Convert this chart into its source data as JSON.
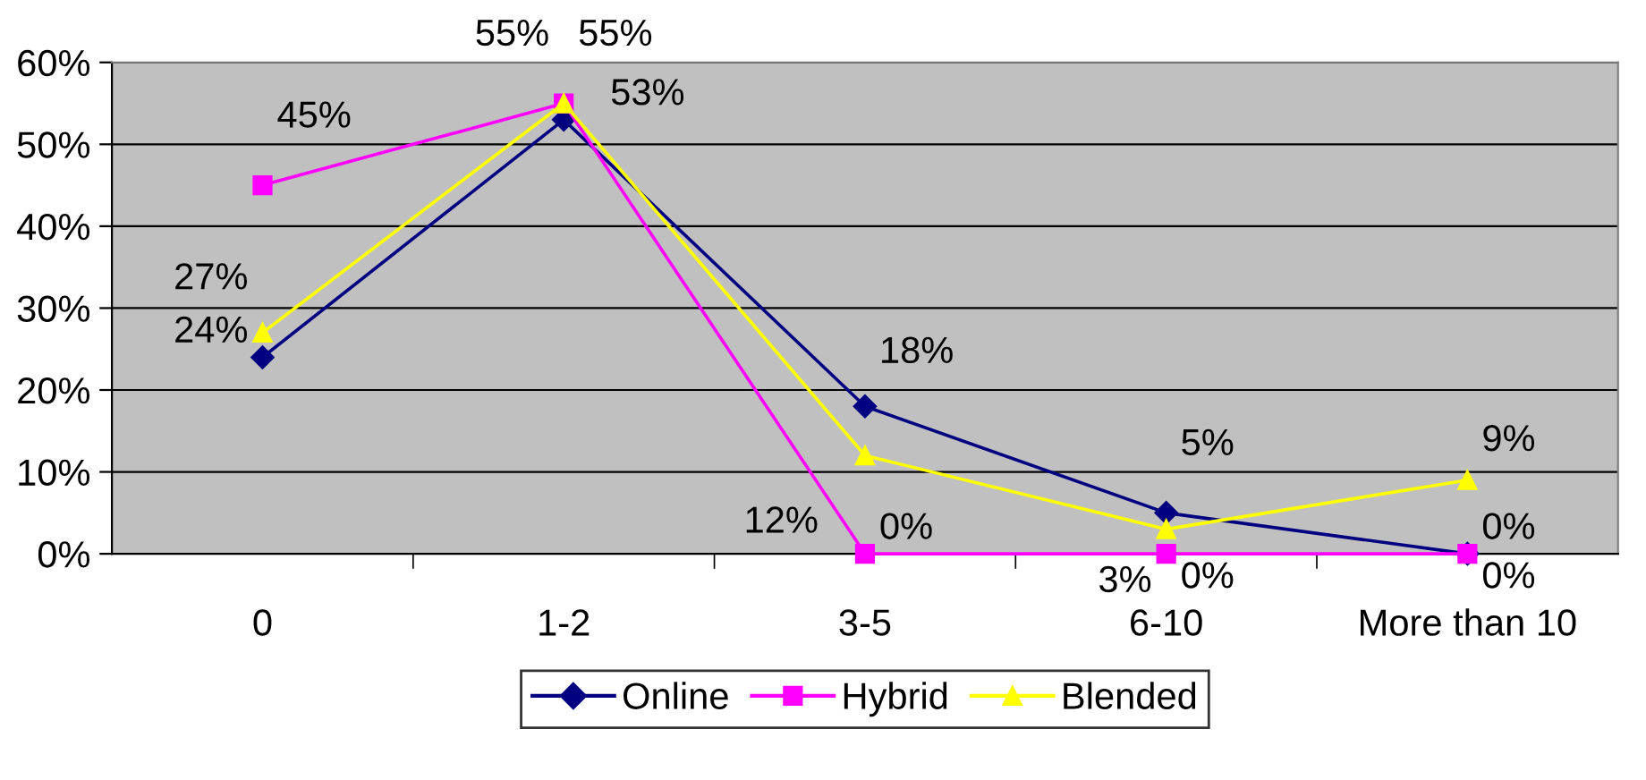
{
  "chart_data": {
    "type": "line",
    "categories": [
      "0",
      "1-2",
      "3-5",
      "6-10",
      "More than 10"
    ],
    "series": [
      {
        "name": "Online",
        "color": "#000080",
        "marker": "diamond",
        "values": [
          24,
          53,
          18,
          5,
          0
        ],
        "value_labels": [
          "24%",
          "53%",
          "18%",
          "5%",
          "0%"
        ]
      },
      {
        "name": "Hybrid",
        "color": "#ff00ff",
        "marker": "square",
        "values": [
          45,
          55,
          0,
          0,
          0
        ],
        "value_labels": [
          "45%",
          "55%",
          "0%",
          "0%",
          "0%"
        ]
      },
      {
        "name": "Blended",
        "color": "#ffff00",
        "marker": "triangle",
        "values": [
          27,
          55,
          12,
          3,
          9
        ],
        "value_labels": [
          "27%",
          "55%",
          "12%",
          "3%",
          "9%"
        ]
      }
    ],
    "ylim": [
      0,
      60
    ],
    "yticks": [
      {
        "value": 0,
        "label": "0%"
      },
      {
        "value": 10,
        "label": "10%"
      },
      {
        "value": 20,
        "label": "20%"
      },
      {
        "value": 30,
        "label": "30%"
      },
      {
        "value": 40,
        "label": "40%"
      },
      {
        "value": 50,
        "label": "50%"
      },
      {
        "value": 60,
        "label": "60%"
      }
    ],
    "grid": "y",
    "legend": "bottom",
    "line_style": "solid"
  }
}
